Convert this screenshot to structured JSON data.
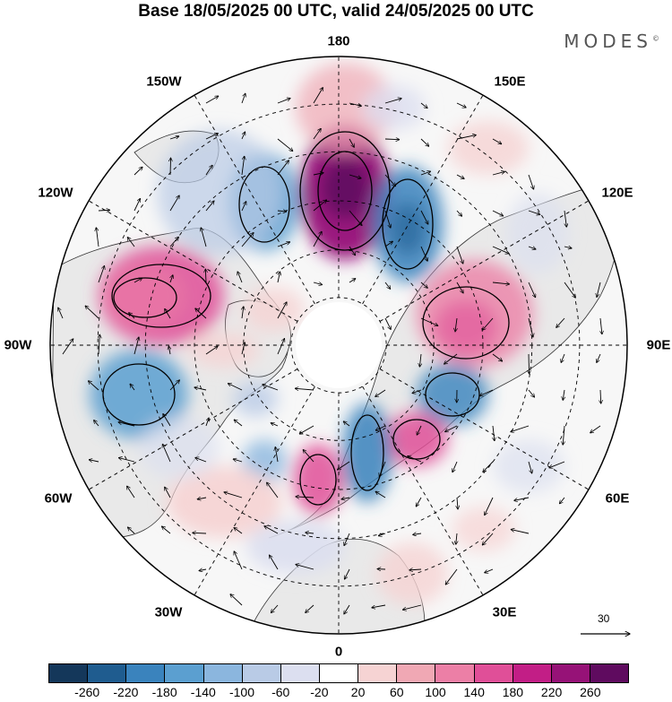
{
  "header": {
    "title": "Base 18/05/2025 00 UTC, valid 24/05/2025 00 UTC",
    "logo_text": "MODES",
    "logo_mark": "©"
  },
  "map": {
    "projection": "north-polar-stereographic",
    "longitude_labels": [
      {
        "key": "180",
        "text": "180"
      },
      {
        "key": "150E",
        "text": "150E"
      },
      {
        "key": "120E",
        "text": "120E"
      },
      {
        "key": "90E",
        "text": "90E"
      },
      {
        "key": "60E",
        "text": "60E"
      },
      {
        "key": "30E",
        "text": "30E"
      },
      {
        "key": "0",
        "text": "0"
      },
      {
        "key": "30W",
        "text": "30W"
      },
      {
        "key": "60W",
        "text": "60W"
      },
      {
        "key": "90W",
        "text": "90W"
      },
      {
        "key": "120W",
        "text": "120W"
      },
      {
        "key": "150W",
        "text": "150W"
      }
    ],
    "vector_reference_label": "30"
  },
  "colorbar": {
    "colors": [
      "#14375a",
      "#1f5c8f",
      "#3a83bd",
      "#5b9fd0",
      "#8bb6de",
      "#b9cbe6",
      "#dcdff0",
      "#ffffff",
      "#f6d3d3",
      "#f0a8b4",
      "#ec7fa6",
      "#e04f98",
      "#c21e86",
      "#961277",
      "#5f0b5f"
    ],
    "tick_labels": [
      "-260",
      "-220",
      "-180",
      "-140",
      "-100",
      "-60",
      "-20",
      "20",
      "60",
      "100",
      "140",
      "180",
      "220",
      "260"
    ]
  }
}
